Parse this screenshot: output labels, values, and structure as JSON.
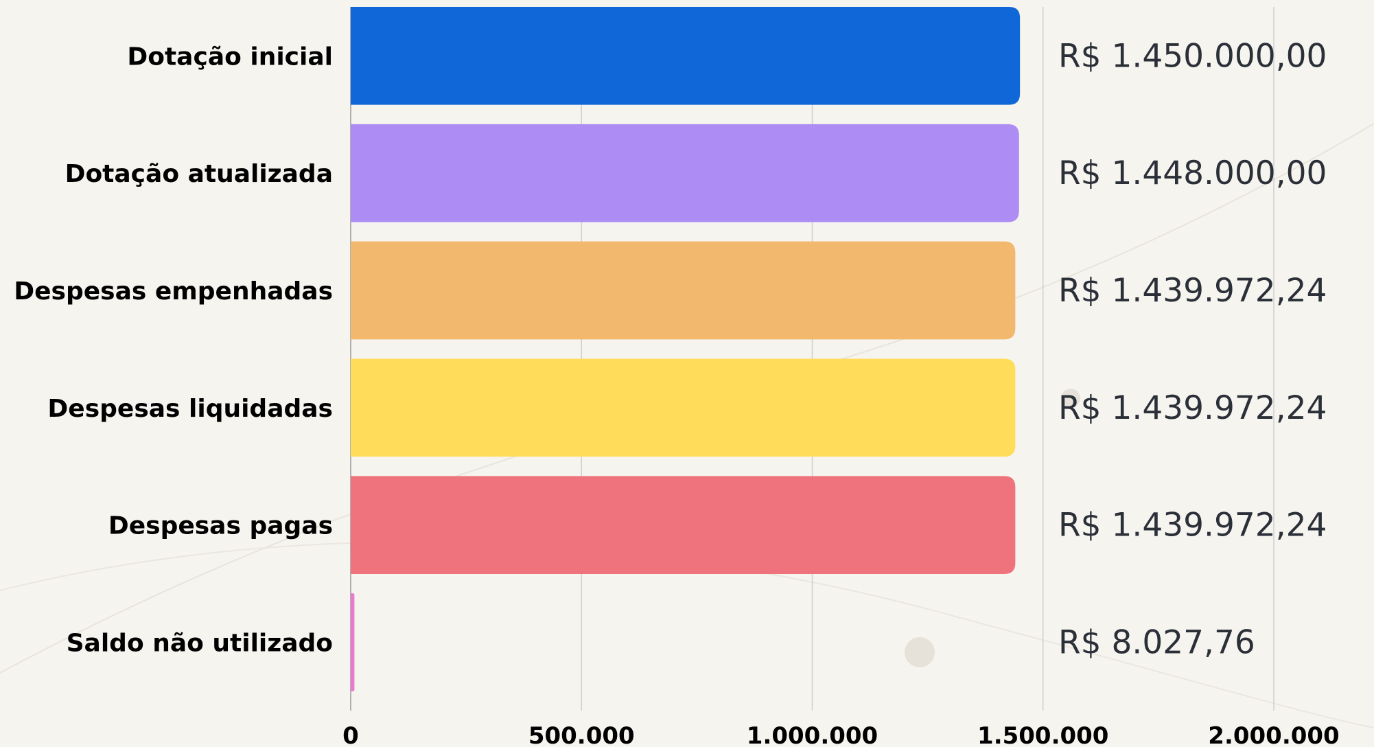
{
  "chart_data": {
    "type": "bar",
    "orientation": "horizontal",
    "title": "",
    "xlabel": "",
    "ylabel": "",
    "xlim": [
      0,
      2000000
    ],
    "grid": true,
    "legend": "none",
    "categories": [
      "Dotação inicial",
      "Dotação atualizada",
      "Despesas empenhadas",
      "Despesas liquidadas",
      "Despesas pagas",
      "Saldo não utilizado"
    ],
    "values": [
      1450000.0,
      1448000.0,
      1439972.24,
      1439972.24,
      1439972.24,
      8027.76
    ],
    "value_labels": [
      "R$ 1.450.000,00",
      "R$ 1.448.000,00",
      "R$ 1.439.972,24",
      "R$ 1.439.972,24",
      "R$ 1.439.972,24",
      "R$ 8.027,76"
    ],
    "colors": [
      "#1068d8",
      "#ad8cf4",
      "#f2b86e",
      "#ffdd5b",
      "#ef737d",
      "#e87ad0"
    ],
    "x_ticks": [
      0,
      500000,
      1000000,
      1500000,
      2000000
    ],
    "x_tick_labels": [
      "0",
      "500.000",
      "1.000.000",
      "1.500.000",
      "2.000.000"
    ]
  }
}
